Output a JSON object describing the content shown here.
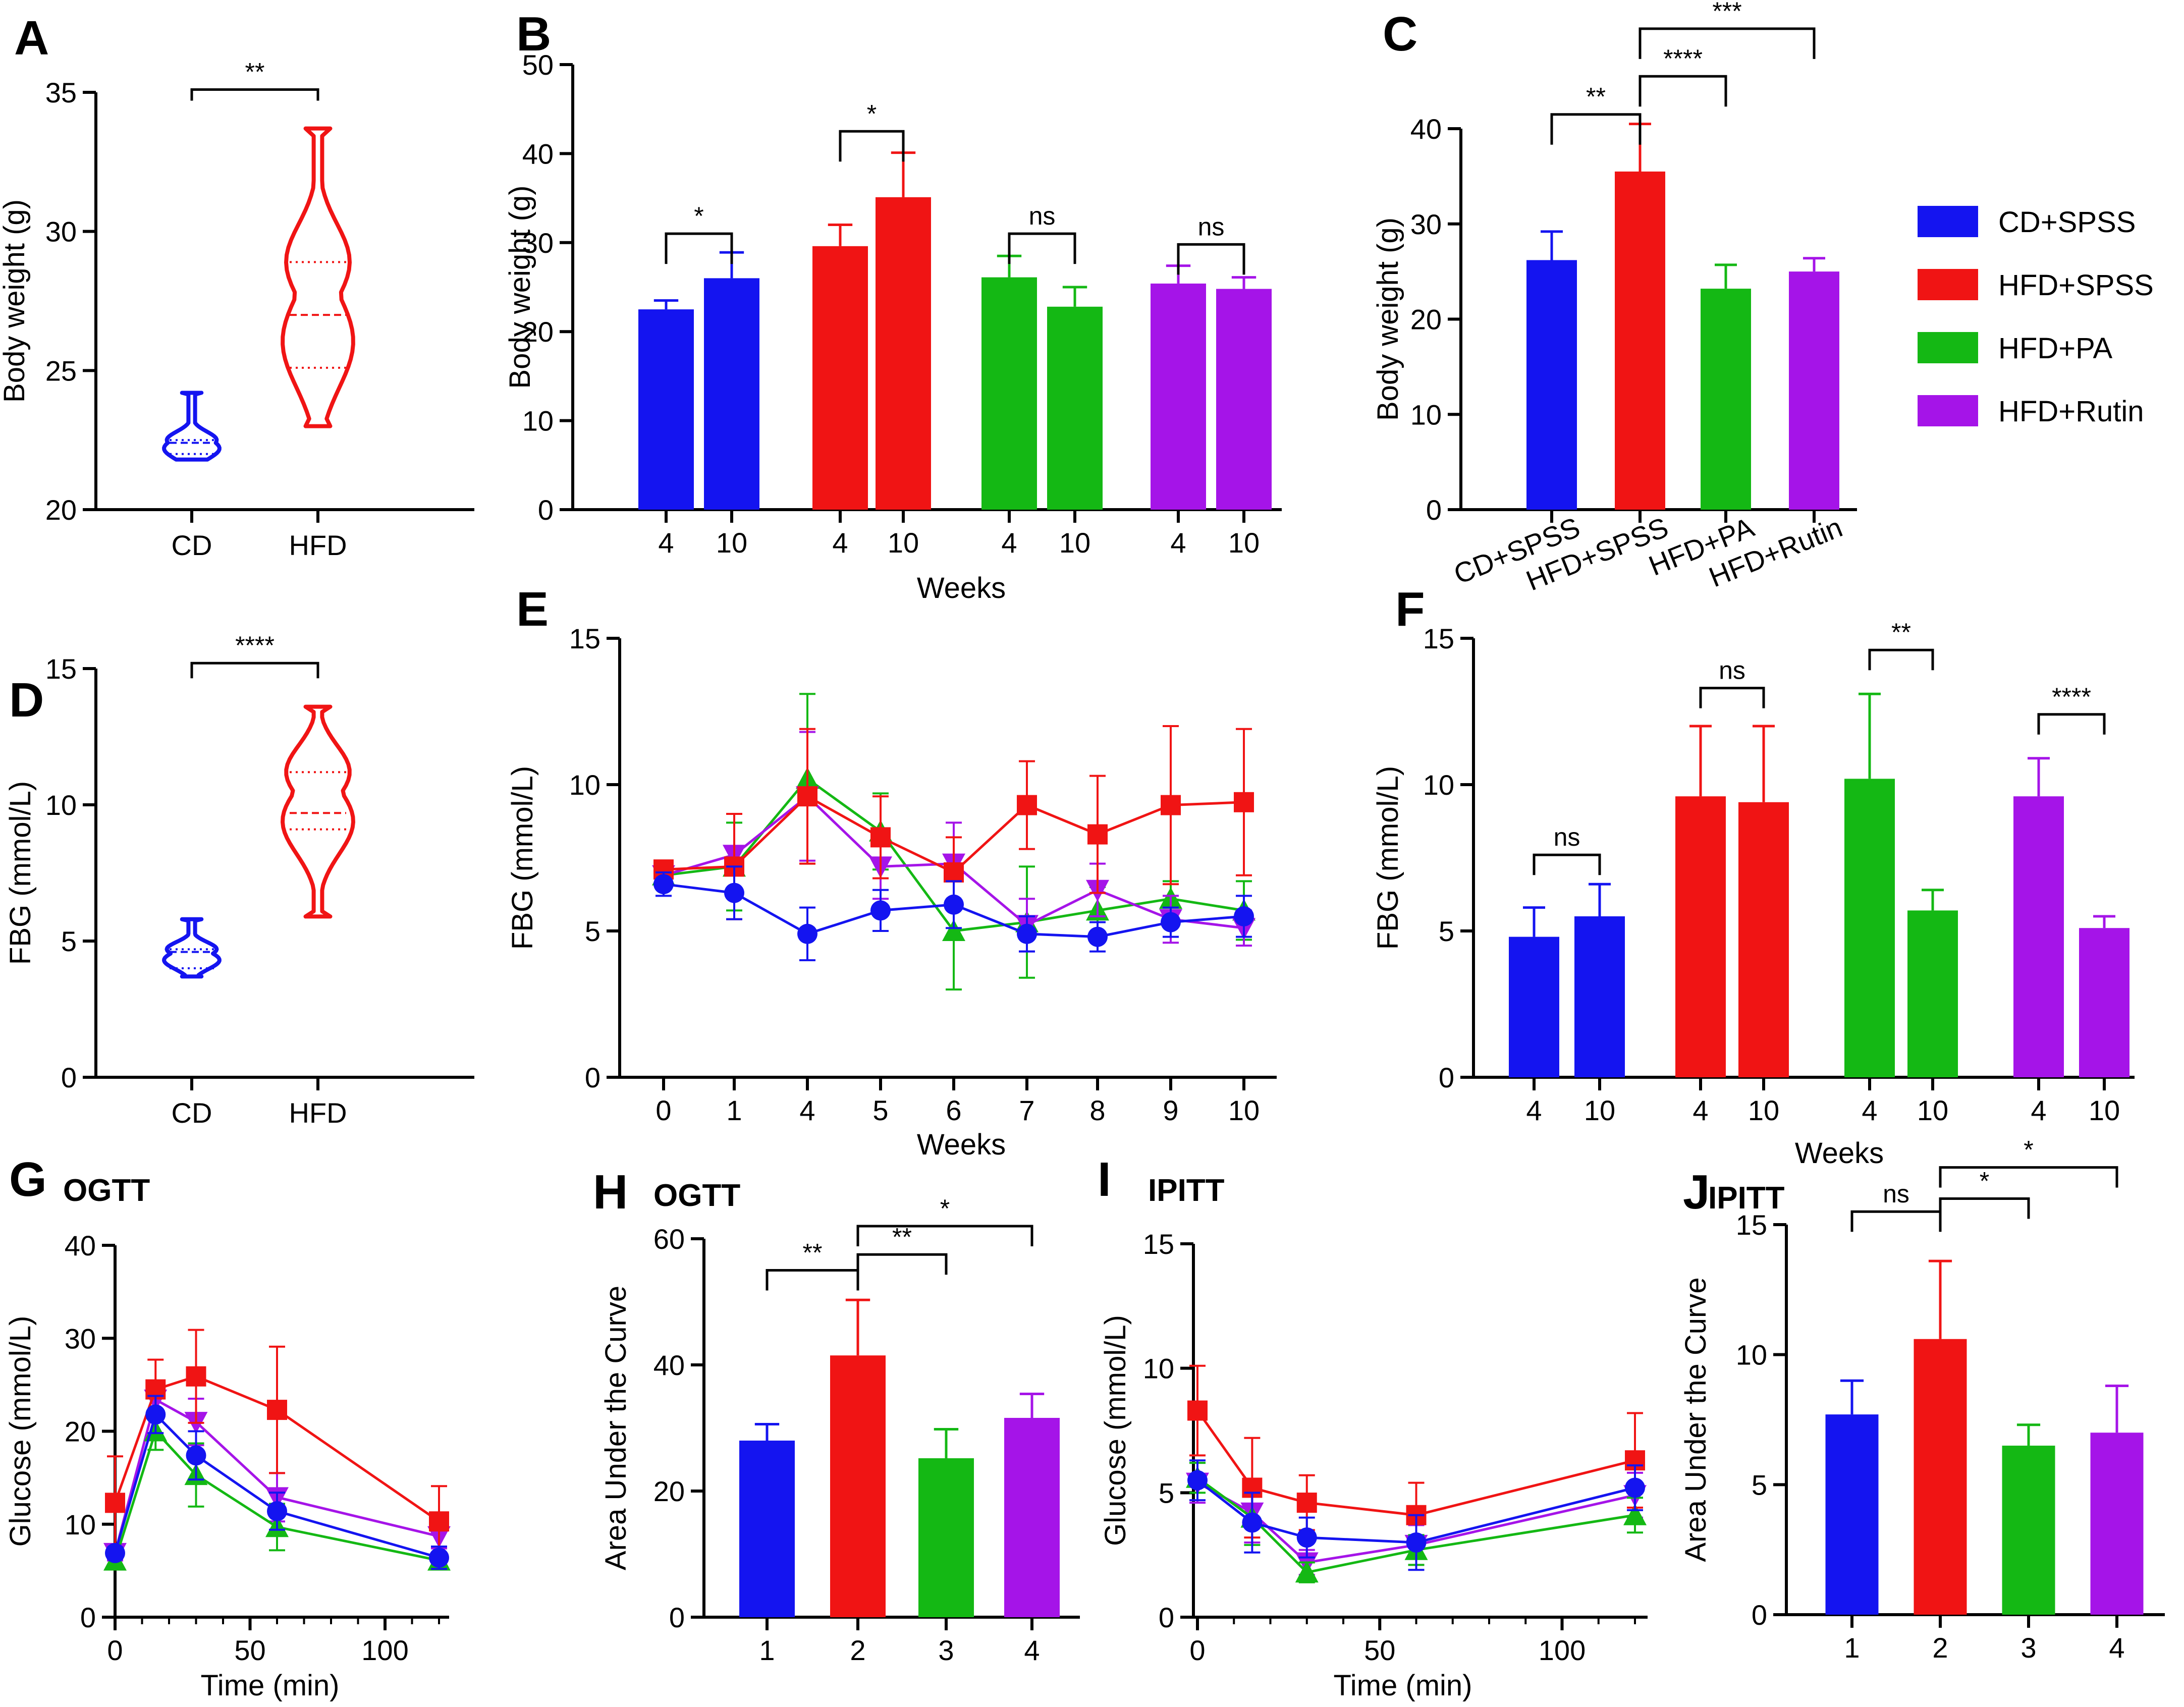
{
  "colors": {
    "cd": "#1414f0",
    "hfd": "#f01414",
    "pa": "#14b814",
    "rutin": "#a514e8"
  },
  "legend": [
    "CD+SPSS",
    "HFD+SPSS",
    "HFD+PA",
    "HFD+Rutin"
  ],
  "chart_data": [
    {
      "id": "A",
      "letter": "A",
      "type": "violin",
      "ylabel": "Body weight (g)",
      "ylim": [
        20,
        35
      ],
      "yticks": [
        20,
        25,
        30,
        35
      ],
      "categories": [
        "CD",
        "HFD"
      ],
      "groups": [
        {
          "name": "CD",
          "color": "cd",
          "min": 21.8,
          "max": 24.2,
          "q1": 22.0,
          "median": 22.4,
          "q3": 22.5
        },
        {
          "name": "HFD",
          "color": "hfd",
          "min": 23.0,
          "max": 33.7,
          "q1": 25.1,
          "median": 27.0,
          "q3": 28.9
        }
      ],
      "significance": [
        {
          "from": 0,
          "to": 1,
          "label": "**",
          "level": 35.1
        }
      ]
    },
    {
      "id": "B",
      "letter": "B",
      "type": "bar",
      "ylabel": "Body weight (g)",
      "xlabel": "Weeks",
      "ylim": [
        0,
        50
      ],
      "yticks": [
        0,
        10,
        20,
        30,
        40,
        50
      ],
      "categories": [
        "4",
        "10",
        "4",
        "10",
        "4",
        "10",
        "4",
        "10"
      ],
      "colors": [
        "cd",
        "cd",
        "hfd",
        "hfd",
        "pa",
        "pa",
        "rutin",
        "rutin"
      ],
      "values": [
        22.5,
        26.0,
        29.6,
        35.1,
        26.1,
        22.8,
        25.4,
        24.8
      ],
      "errors": [
        1.0,
        2.9,
        2.4,
        5.0,
        2.4,
        2.2,
        2.0,
        1.3
      ],
      "significance": [
        {
          "from": 0,
          "to": 1,
          "label": "*",
          "level": 31.0
        },
        {
          "from": 2,
          "to": 3,
          "label": "*",
          "level": 42.5
        },
        {
          "from": 4,
          "to": 5,
          "label": "ns",
          "level": 31.0
        },
        {
          "from": 6,
          "to": 7,
          "label": "ns",
          "level": 29.8
        }
      ]
    },
    {
      "id": "C",
      "letter": "C",
      "type": "bar",
      "ylabel": "Body weight (g)",
      "ylim": [
        0,
        40
      ],
      "yticks": [
        0,
        10,
        20,
        30,
        40
      ],
      "categories": [
        "CD+SPSS",
        "HFD+SPSS",
        "HFD+PA",
        "HFD+Rutin"
      ],
      "colors": [
        "cd",
        "hfd",
        "pa",
        "rutin"
      ],
      "values": [
        26.2,
        35.5,
        23.2,
        25.0
      ],
      "errors": [
        3.0,
        5.0,
        2.5,
        1.4
      ],
      "significance": [
        {
          "from": 0,
          "to": 1,
          "label": "**",
          "level": 41.5
        },
        {
          "from": 1,
          "to": 2,
          "label": "****",
          "level": 45.5
        },
        {
          "from": 1,
          "to": 3,
          "label": "***",
          "level": 50.5
        }
      ]
    },
    {
      "id": "D",
      "letter": "D",
      "type": "violin",
      "ylabel": "FBG (mmol/L)",
      "ylim": [
        0,
        15
      ],
      "yticks": [
        0,
        5,
        10,
        15
      ],
      "categories": [
        "CD",
        "HFD"
      ],
      "groups": [
        {
          "name": "CD",
          "color": "cd",
          "min": 3.7,
          "max": 5.8,
          "q1": 4.0,
          "median": 4.6,
          "q3": 4.7
        },
        {
          "name": "HFD",
          "color": "hfd",
          "min": 5.9,
          "max": 13.6,
          "q1": 9.1,
          "median": 9.7,
          "q3": 11.2
        }
      ],
      "significance": [
        {
          "from": 0,
          "to": 1,
          "label": "****",
          "level": 15.2
        }
      ]
    },
    {
      "id": "E",
      "letter": "E",
      "type": "line",
      "ylabel": "FBG (mmol/L)",
      "xlabel": "Weeks",
      "ylim": [
        0,
        15
      ],
      "yticks": [
        0,
        5,
        10,
        15
      ],
      "categories": [
        "0",
        "1",
        "4",
        "5",
        "6",
        "7",
        "8",
        "9",
        "10"
      ],
      "series": [
        {
          "name": "HFD+PA",
          "color": "pa",
          "marker": "triangle-up",
          "values": [
            6.9,
            7.2,
            10.2,
            8.4,
            5.0,
            5.3,
            5.7,
            6.1,
            5.7
          ],
          "errors": [
            0.3,
            1.5,
            2.9,
            1.3,
            2.0,
            1.9,
            0.8,
            0.6,
            1.0
          ]
        },
        {
          "name": "HFD+Rutin",
          "color": "rutin",
          "marker": "triangle-down",
          "values": [
            6.9,
            7.6,
            9.6,
            7.2,
            7.3,
            5.2,
            6.4,
            5.4,
            5.1
          ],
          "errors": [
            0.3,
            1.4,
            2.2,
            1.1,
            1.4,
            0.9,
            0.9,
            0.8,
            0.6
          ]
        },
        {
          "name": "HFD+SPSS",
          "color": "hfd",
          "marker": "square",
          "values": [
            7.1,
            7.2,
            9.6,
            8.2,
            7.0,
            9.3,
            8.3,
            9.3,
            9.4
          ],
          "errors": [
            0.2,
            1.8,
            2.3,
            1.4,
            1.2,
            1.5,
            2.0,
            2.7,
            2.5
          ]
        },
        {
          "name": "CD+SPSS",
          "color": "cd",
          "marker": "circle",
          "values": [
            6.6,
            6.3,
            4.9,
            5.7,
            5.9,
            4.9,
            4.8,
            5.3,
            5.5
          ],
          "errors": [
            0.4,
            0.9,
            0.9,
            0.7,
            0.8,
            0.6,
            0.5,
            0.5,
            0.7
          ]
        }
      ]
    },
    {
      "id": "F",
      "letter": "F",
      "type": "bar",
      "ylabel": "FBG (mmol/L)",
      "xlabel": "Weeks",
      "ylim": [
        0,
        15
      ],
      "yticks": [
        0,
        5,
        10,
        15
      ],
      "categories": [
        "4",
        "10",
        "4",
        "10",
        "4",
        "10",
        "4",
        "10"
      ],
      "colors": [
        "cd",
        "cd",
        "hfd",
        "hfd",
        "pa",
        "pa",
        "rutin",
        "rutin"
      ],
      "values": [
        4.8,
        5.5,
        9.6,
        9.4,
        10.2,
        5.7,
        9.6,
        5.1
      ],
      "errors": [
        1.0,
        1.1,
        2.4,
        2.6,
        2.9,
        0.7,
        1.3,
        0.4
      ],
      "significance": [
        {
          "from": 0,
          "to": 1,
          "label": "ns",
          "level": 7.6
        },
        {
          "from": 2,
          "to": 3,
          "label": "ns",
          "level": 13.3
        },
        {
          "from": 4,
          "to": 5,
          "label": "**",
          "level": 14.6
        },
        {
          "from": 6,
          "to": 7,
          "label": "****",
          "level": 12.4
        }
      ]
    },
    {
      "id": "G",
      "letter": "G",
      "title": "OGTT",
      "type": "line",
      "ylabel": "Glucose (mmol/L)",
      "xlabel": "Time (min)",
      "xlim": [
        0,
        120
      ],
      "xticks": [
        0,
        50,
        100
      ],
      "ylim": [
        0,
        40
      ],
      "yticks": [
        0,
        10,
        20,
        30,
        40
      ],
      "x": [
        0,
        15,
        30,
        60,
        120
      ],
      "series": [
        {
          "name": "HFD+Rutin",
          "color": "rutin",
          "marker": "triangle-down",
          "values": [
            6.9,
            23.4,
            21.0,
            12.9,
            8.7
          ],
          "errors": [
            0.8,
            1.5,
            2.5,
            2.6,
            1.3
          ]
        },
        {
          "name": "HFD+PA",
          "color": "pa",
          "marker": "triangle-up",
          "values": [
            6.1,
            20.0,
            15.3,
            9.7,
            6.1
          ],
          "errors": [
            0.7,
            2.0,
            3.4,
            2.5,
            0.8
          ]
        },
        {
          "name": "HFD+SPSS",
          "color": "hfd",
          "marker": "square",
          "values": [
            12.3,
            24.5,
            25.9,
            22.3,
            10.3
          ],
          "errors": [
            5.0,
            3.2,
            5.0,
            6.8,
            3.8
          ]
        },
        {
          "name": "CD+SPSS",
          "color": "cd",
          "marker": "circle",
          "values": [
            6.9,
            21.8,
            17.4,
            11.4,
            6.4
          ],
          "errors": [
            0.6,
            2.0,
            2.6,
            2.0,
            1.2
          ]
        }
      ]
    },
    {
      "id": "H",
      "letter": "H",
      "title": "OGTT",
      "type": "bar",
      "ylabel": "Area Under the Curve",
      "ylim": [
        0,
        60
      ],
      "yticks": [
        0,
        20,
        40,
        60
      ],
      "categories": [
        "1",
        "2",
        "3",
        "4"
      ],
      "colors": [
        "cd",
        "hfd",
        "pa",
        "rutin"
      ],
      "values": [
        28.0,
        41.5,
        25.2,
        31.6
      ],
      "errors": [
        2.6,
        8.8,
        4.6,
        3.8
      ],
      "significance": [
        {
          "from": 0,
          "to": 1,
          "label": "**",
          "level": 55.0
        },
        {
          "from": 1,
          "to": 2,
          "label": "**",
          "level": 57.5
        },
        {
          "from": 1,
          "to": 3,
          "label": "*",
          "level": 62.0
        }
      ]
    },
    {
      "id": "I",
      "letter": "I",
      "title": "IPITT",
      "type": "line",
      "ylabel": "Glucose (mmol/L)",
      "xlabel": "Time (min)",
      "xlim": [
        0,
        120
      ],
      "xticks": [
        0,
        50,
        100
      ],
      "ylim": [
        0,
        15
      ],
      "yticks": [
        0,
        5,
        10,
        15
      ],
      "x": [
        0,
        15,
        30,
        60,
        120
      ],
      "series": [
        {
          "name": "HFD+Rutin",
          "color": "rutin",
          "marker": "triangle-down",
          "values": [
            5.4,
            4.2,
            2.2,
            2.9,
            4.9
          ],
          "errors": [
            0.8,
            1.2,
            0.5,
            0.8,
            0.9
          ]
        },
        {
          "name": "HFD+PA",
          "color": "pa",
          "marker": "triangle-up",
          "values": [
            5.6,
            4.0,
            1.8,
            2.7,
            4.1
          ],
          "errors": [
            0.6,
            1.1,
            0.4,
            0.6,
            0.7
          ]
        },
        {
          "name": "HFD+SPSS",
          "color": "hfd",
          "marker": "square",
          "values": [
            8.3,
            5.2,
            4.6,
            4.1,
            6.3
          ],
          "errors": [
            1.8,
            2.0,
            1.1,
            1.3,
            1.9
          ]
        },
        {
          "name": "CD+SPSS",
          "color": "cd",
          "marker": "circle",
          "values": [
            5.5,
            3.8,
            3.2,
            3.0,
            5.2
          ],
          "errors": [
            0.8,
            1.2,
            0.8,
            1.1,
            0.9
          ]
        }
      ]
    },
    {
      "id": "J",
      "letter": "J",
      "title": "IPITT",
      "type": "bar",
      "ylabel": "Area Under the Curve",
      "ylim": [
        0,
        15
      ],
      "yticks": [
        0,
        5,
        10,
        15
      ],
      "categories": [
        "1",
        "2",
        "3",
        "4"
      ],
      "colors": [
        "cd",
        "hfd",
        "pa",
        "rutin"
      ],
      "values": [
        7.7,
        10.6,
        6.5,
        7.0
      ],
      "errors": [
        1.3,
        3.0,
        0.8,
        1.8
      ],
      "significance": [
        {
          "from": 0,
          "to": 1,
          "label": "ns",
          "level": 15.5
        },
        {
          "from": 1,
          "to": 2,
          "label": "*",
          "level": 16.0
        },
        {
          "from": 1,
          "to": 3,
          "label": "*",
          "level": 17.2
        }
      ]
    }
  ]
}
